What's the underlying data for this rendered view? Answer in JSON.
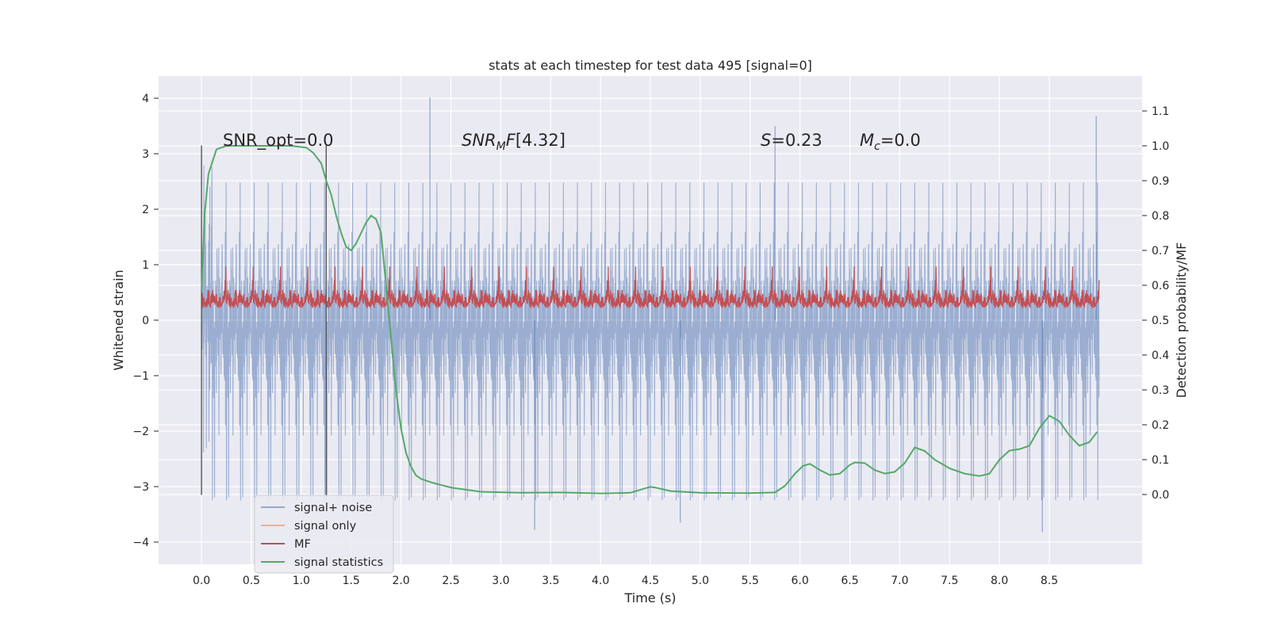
{
  "chart_data": {
    "type": "line",
    "title": "stats at each timestep for test data 495 [signal=0]",
    "xlabel": "Time (s)",
    "ylabel": "Whitened strain",
    "y2label": "Detection probability/MF",
    "xlim": [
      -0.43,
      9.43
    ],
    "ylim": [
      -4.4,
      4.4
    ],
    "y2lim": [
      -0.2,
      1.2
    ],
    "xticks": [
      0.0,
      0.5,
      1.0,
      1.5,
      2.0,
      2.5,
      3.0,
      3.5,
      4.0,
      4.5,
      5.0,
      5.5,
      6.0,
      6.5,
      7.0,
      7.5,
      8.0,
      8.5
    ],
    "xtick_labels": [
      "0.0",
      "0.5",
      "1.0",
      "1.5",
      "2.0",
      "2.5",
      "3.0",
      "3.5",
      "4.0",
      "4.5",
      "5.0",
      "5.5",
      "6.0",
      "6.5",
      "7.0",
      "7.5",
      "8.0",
      "8.5"
    ],
    "yticks": [
      4,
      3,
      2,
      1,
      0,
      -1,
      -2,
      -3,
      -4
    ],
    "ytick_labels": [
      "4",
      "3",
      "2",
      "1",
      "0",
      "−1",
      "−2",
      "−3",
      "−4"
    ],
    "y2ticks": [
      1.1,
      1.0,
      0.9,
      0.8,
      0.7,
      0.6,
      0.5,
      0.4,
      0.3,
      0.2,
      0.1,
      0.0
    ],
    "y2tick_labels": [
      "1.1",
      "1.0",
      "0.9",
      "0.8",
      "0.7",
      "0.6",
      "0.5",
      "0.4",
      "0.3",
      "0.2",
      "0.1",
      "0.0"
    ],
    "grid": true,
    "legend_position": "lower-left",
    "annotations": {
      "snr_opt": "SNR_opt=0.0",
      "snr_mf": "[4.32]",
      "s": "=0.23",
      "mc": "=0.0"
    },
    "vertical_markers": {
      "x": [
        0.0,
        1.25
      ],
      "y_range": [
        -3.15,
        3.15
      ]
    },
    "series": [
      {
        "name": "signal+ noise",
        "axis": "left",
        "color": "#4c72b0",
        "description": "dense whitened strain noise",
        "t_start": 0.0,
        "t_end": 9.0,
        "envelope_lower": -1.9,
        "envelope_upper": 1.9,
        "max_spike": 4.02,
        "min_spike": -3.82
      },
      {
        "name": "signal only",
        "axis": "left",
        "color": "#dd8452",
        "values": []
      },
      {
        "name": "MF",
        "axis": "right",
        "color": "#c44e52",
        "t_start": 0.0,
        "t_end": 9.0,
        "range": [
          0.5,
          0.67
        ]
      },
      {
        "name": "signal statistics",
        "axis": "right",
        "color": "#55a868",
        "x": [
          0.0,
          0.03,
          0.07,
          0.15,
          0.25,
          0.35,
          0.5,
          0.7,
          0.9,
          1.05,
          1.12,
          1.2,
          1.25,
          1.3,
          1.35,
          1.4,
          1.45,
          1.5,
          1.55,
          1.6,
          1.65,
          1.7,
          1.75,
          1.8,
          1.85,
          1.9,
          1.95,
          2.0,
          2.05,
          2.1,
          2.15,
          2.2,
          2.3,
          2.5,
          2.8,
          3.2,
          3.6,
          4.0,
          4.3,
          4.45,
          4.5,
          4.55,
          4.7,
          5.0,
          5.5,
          5.75,
          5.85,
          5.95,
          6.03,
          6.1,
          6.2,
          6.3,
          6.4,
          6.5,
          6.55,
          6.65,
          6.75,
          6.85,
          6.95,
          7.05,
          7.15,
          7.25,
          7.35,
          7.5,
          7.65,
          7.8,
          7.9,
          8.0,
          8.1,
          8.2,
          8.3,
          8.4,
          8.5,
          8.6,
          8.7,
          8.8,
          8.9,
          8.98
        ],
        "values": [
          0.58,
          0.8,
          0.92,
          0.99,
          1.0,
          1.0,
          1.0,
          1.0,
          1.0,
          0.995,
          0.98,
          0.95,
          0.9,
          0.86,
          0.8,
          0.75,
          0.71,
          0.7,
          0.72,
          0.75,
          0.78,
          0.8,
          0.79,
          0.75,
          0.6,
          0.45,
          0.3,
          0.19,
          0.12,
          0.08,
          0.055,
          0.045,
          0.035,
          0.02,
          0.008,
          0.005,
          0.006,
          0.003,
          0.005,
          0.018,
          0.022,
          0.02,
          0.01,
          0.005,
          0.004,
          0.006,
          0.025,
          0.06,
          0.082,
          0.088,
          0.07,
          0.056,
          0.06,
          0.085,
          0.092,
          0.09,
          0.07,
          0.06,
          0.065,
          0.09,
          0.135,
          0.125,
          0.1,
          0.075,
          0.06,
          0.053,
          0.06,
          0.1,
          0.126,
          0.13,
          0.14,
          0.19,
          0.226,
          0.21,
          0.17,
          0.14,
          0.15,
          0.18
        ]
      }
    ]
  }
}
